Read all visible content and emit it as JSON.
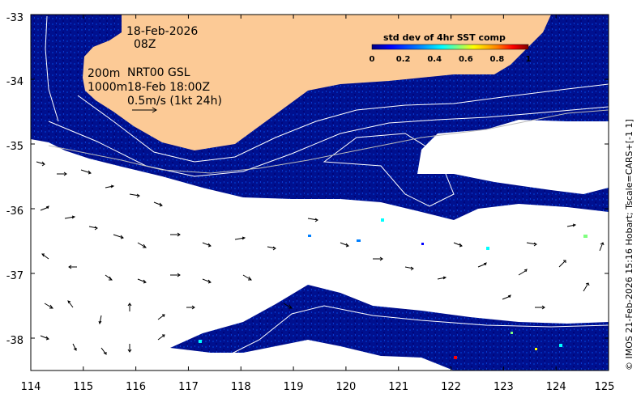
{
  "map": {
    "lon_range": [
      114,
      125
    ],
    "lat_range": [
      -38.5,
      -33
    ],
    "x_ticks": [
      "114",
      "115",
      "116",
      "117",
      "118",
      "119",
      "120",
      "121",
      "122",
      "123",
      "124",
      "125"
    ],
    "y_ticks": [
      "-33",
      "-34",
      "-35",
      "-36",
      "-37",
      "-38"
    ],
    "land_color": "#fcca96",
    "ocean_color": "#000a8c",
    "nodata_color": "#ffffff"
  },
  "annotations": {
    "date": "18-Feb-2026",
    "hour": "08Z",
    "contour_200": "200m",
    "contour_1000": "1000m",
    "product": "NRT00 GSL",
    "product_time": "18-Feb 18:00Z",
    "scale_label": "0.5m/s (1kt 24h)"
  },
  "colorbar": {
    "title": "std dev of 4hr SST comp",
    "ticks": [
      "0",
      "0.2",
      "0.4",
      "0.6",
      "0.8",
      "1"
    ],
    "range": [
      0,
      1
    ],
    "colors": [
      "#00007f",
      "#0000ff",
      "#007fff",
      "#00ffff",
      "#7fff7f",
      "#ffff00",
      "#ff7f00",
      "#ff0000",
      "#7f0000"
    ]
  },
  "credit": "© IMOS 21-Feb-2026 15:16 Hobart; Tscale=CARS+[-1 1]"
}
